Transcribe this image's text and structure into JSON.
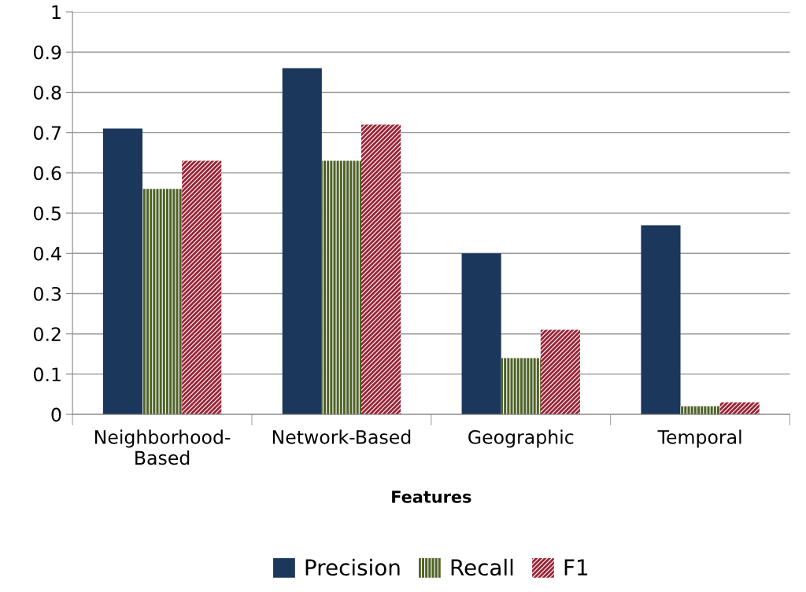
{
  "chart_data": {
    "type": "bar",
    "xlabel": "Features",
    "categories": [
      "Neighborhood-\nBased",
      "Network-Based",
      "Geographic",
      "Temporal"
    ],
    "series": [
      {
        "name": "Precision",
        "color": "#1b375c",
        "values": [
          0.71,
          0.86,
          0.4,
          0.47
        ]
      },
      {
        "name": "Recall",
        "color": "#4f6228",
        "values": [
          0.56,
          0.63,
          0.14,
          0.02
        ]
      },
      {
        "name": "F1",
        "color": "#9b2335",
        "values": [
          0.63,
          0.72,
          0.21,
          0.03
        ]
      }
    ],
    "ylim": [
      0,
      1
    ],
    "yticks": [
      0,
      0.1,
      0.2,
      0.3,
      0.4,
      0.5,
      0.6,
      0.7,
      0.8,
      0.9,
      1
    ],
    "grid": "y",
    "legend": "bottom"
  }
}
